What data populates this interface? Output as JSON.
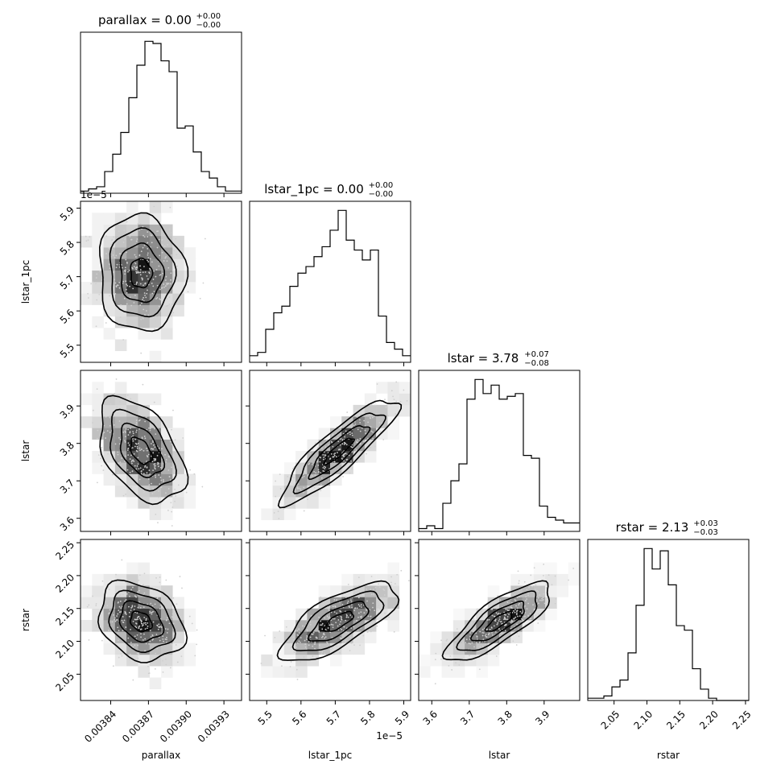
{
  "chart_data": {
    "type": "corner",
    "params": [
      "parallax",
      "lstar_1pc",
      "lstar",
      "rstar"
    ],
    "titles": [
      {
        "prefix": "parallax = 0.00",
        "sup": "+0.00",
        "sub": "−0.00"
      },
      {
        "prefix": "lstar_1pc = 0.00",
        "sup": "+0.00",
        "sub": "−0.00"
      },
      {
        "prefix": "lstar = 3.78",
        "sup": "+0.07",
        "sub": "−0.08"
      },
      {
        "prefix": "rstar = 2.13",
        "sup": "+0.03",
        "sub": "−0.03"
      }
    ],
    "ranges": [
      [
        0.003816,
        0.003944
      ],
      [
        5.45,
        5.92
      ],
      [
        3.565,
        3.995
      ],
      [
        2.01,
        2.255
      ]
    ],
    "ticks": [
      {
        "values": [
          0.00384,
          0.00387,
          0.0039,
          0.00393
        ],
        "labels": [
          "0.00384",
          "0.00387",
          "0.00390",
          "0.00393"
        ]
      },
      {
        "values": [
          5.5,
          5.6,
          5.7,
          5.8,
          5.9
        ],
        "labels": [
          "5.5",
          "5.6",
          "5.7",
          "5.8",
          "5.9"
        ],
        "offset": "1e−5"
      },
      {
        "values": [
          3.6,
          3.7,
          3.8,
          3.9
        ],
        "labels": [
          "3.6",
          "3.7",
          "3.8",
          "3.9"
        ]
      },
      {
        "values": [
          2.05,
          2.1,
          2.15,
          2.2,
          2.25
        ],
        "labels": [
          "2.05",
          "2.10",
          "2.15",
          "2.20",
          "2.25"
        ]
      }
    ],
    "histograms": [
      [
        1,
        2,
        3,
        10,
        18,
        28,
        44,
        59,
        70,
        69,
        61,
        56,
        30,
        31,
        19,
        10,
        7,
        3,
        1,
        1
      ],
      [
        2,
        3,
        10,
        15,
        17,
        23,
        27,
        29,
        32,
        35,
        40,
        46,
        37,
        34,
        31,
        34,
        14,
        6,
        4,
        2
      ],
      [
        1,
        2,
        1,
        10,
        18,
        24,
        47,
        54,
        49,
        52,
        47,
        48,
        49,
        27,
        26,
        9,
        5,
        4,
        3,
        3
      ],
      [
        1,
        1,
        2,
        6,
        9,
        21,
        42,
        67,
        58,
        66,
        51,
        33,
        31,
        14,
        5,
        1,
        0,
        0,
        0,
        0
      ]
    ],
    "means": [
      0.003864,
      5.71,
      3.78,
      2.13
    ],
    "sigmas": [
      1.7e-05,
      0.085,
      0.07,
      0.03
    ],
    "correlations": [
      [
        0,
        1,
        2,
        0
      ],
      [
        1,
        0
      ],
      [
        2,
        0
      ],
      [
        2,
        1
      ],
      [
        3,
        0
      ],
      [
        3,
        1
      ],
      [
        3,
        2
      ]
    ],
    "corr_values": {
      "1-0": -0.05,
      "2-0": -0.45,
      "2-1": 0.88,
      "3-0": -0.25,
      "3-1": 0.72,
      "3-2": 0.8
    },
    "grid": false
  }
}
